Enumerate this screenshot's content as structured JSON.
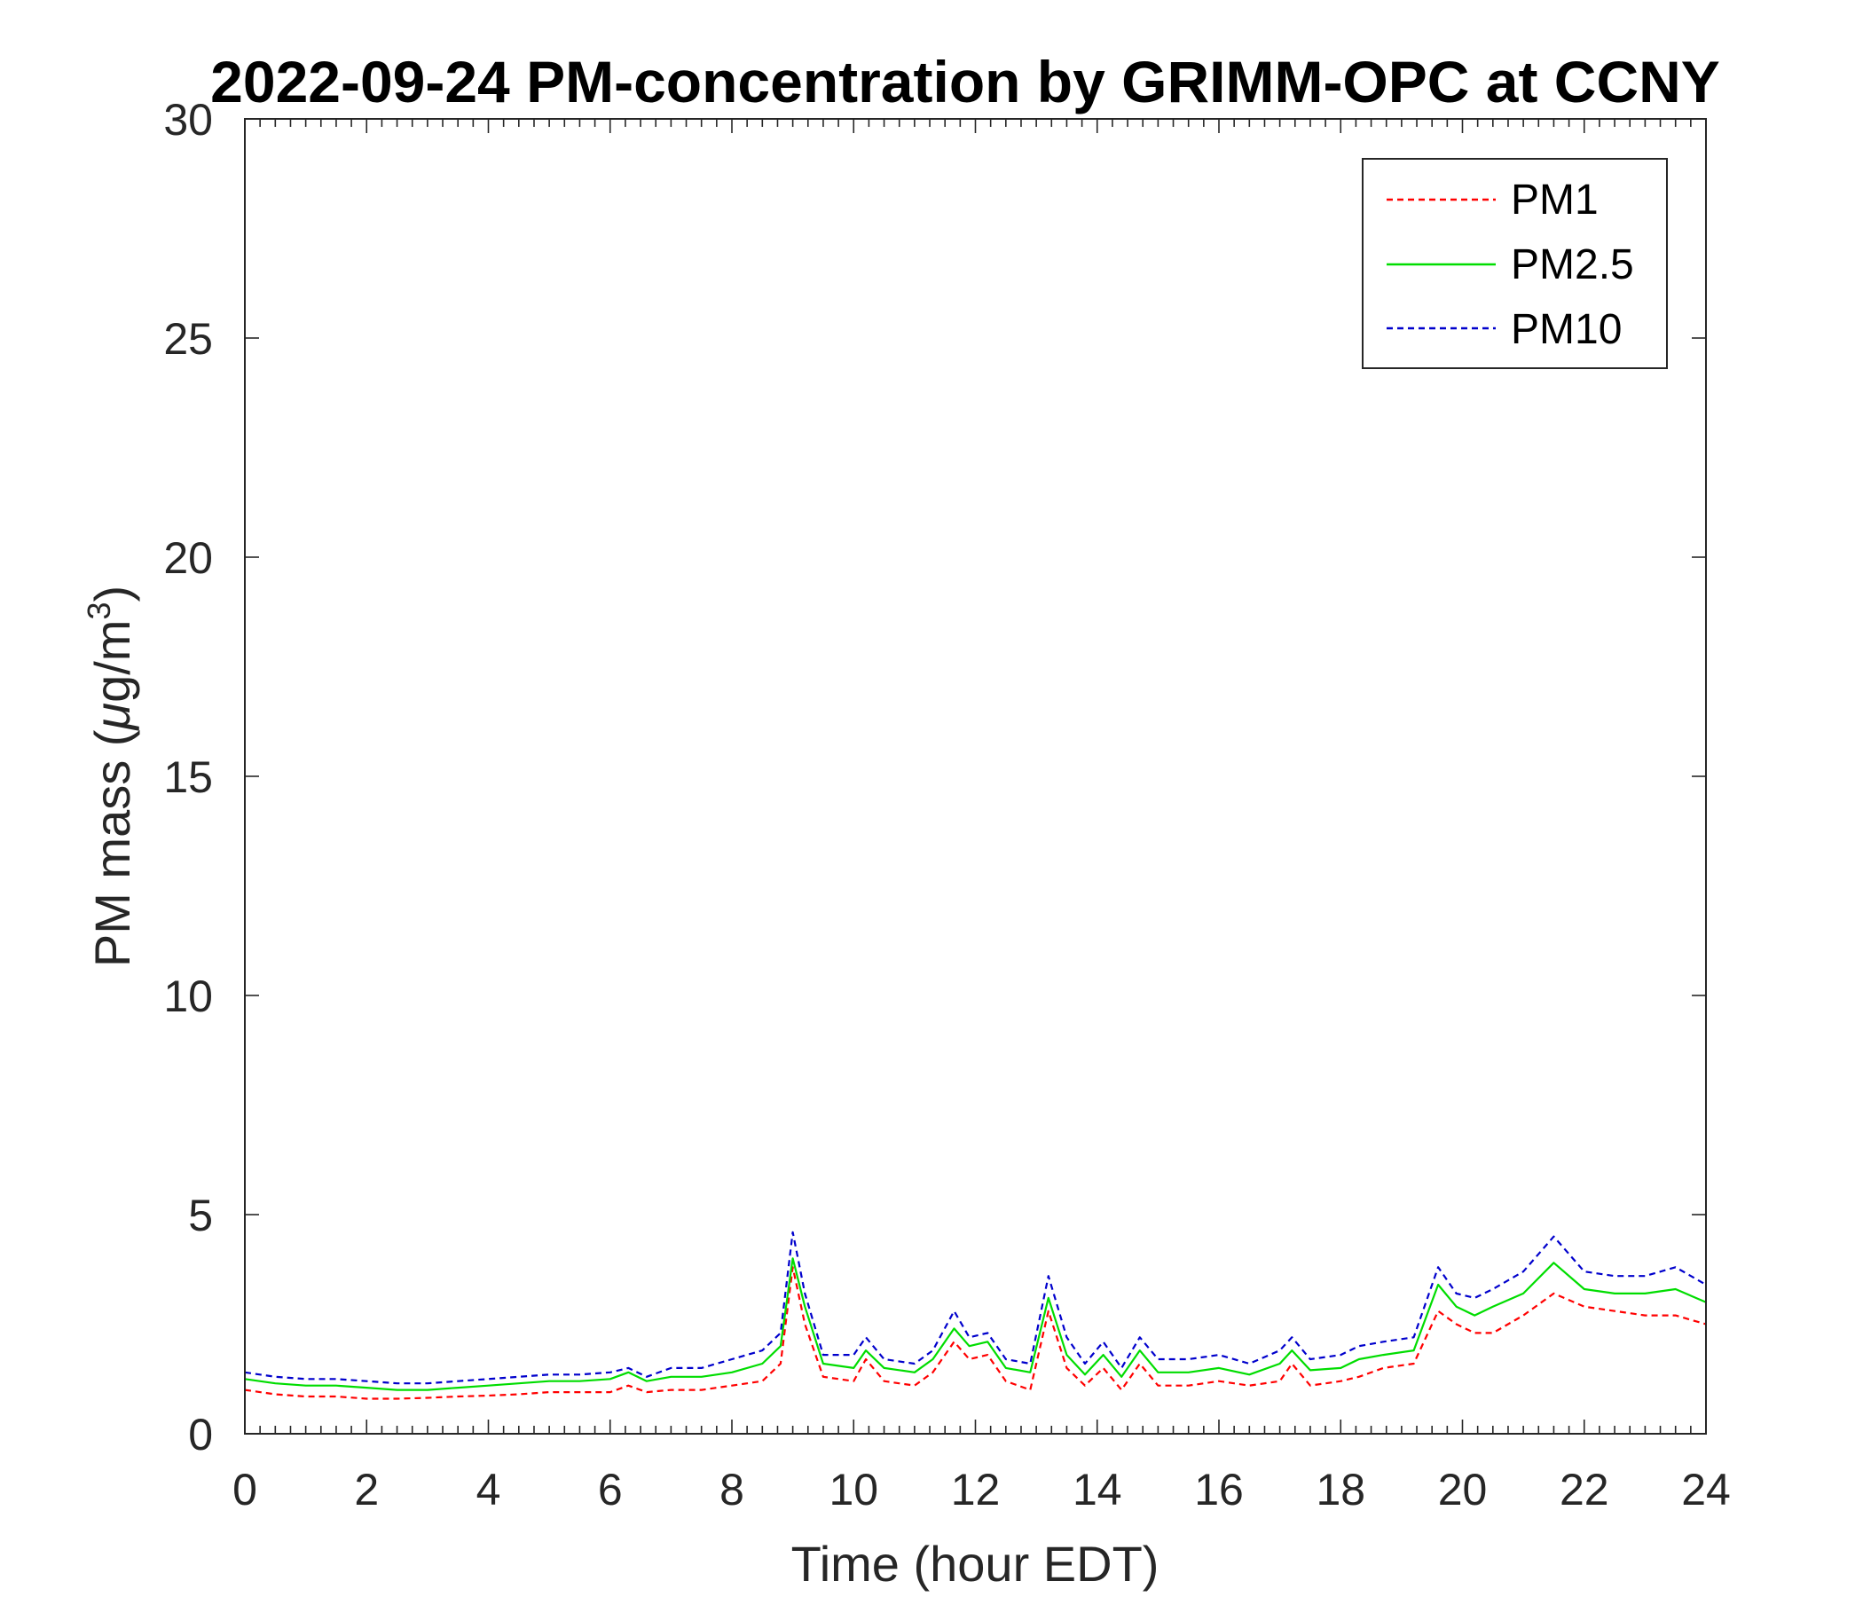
{
  "chart_data": {
    "type": "line",
    "title": "2022-09-24 PM-concentration by GRIMM-OPC at CCNY",
    "xlabel": "Time (hour EDT)",
    "ylabel_prefix": "PM mass (",
    "ylabel_mu": "μ",
    "ylabel_unit": "g/m",
    "ylabel_exp": "3",
    "ylabel_suffix": ")",
    "xlim": [
      0,
      24
    ],
    "ylim": [
      0,
      30
    ],
    "x_ticks": [
      "0",
      "2",
      "4",
      "6",
      "8",
      "10",
      "12",
      "14",
      "16",
      "18",
      "20",
      "22",
      "24"
    ],
    "y_ticks": [
      "0",
      "5",
      "10",
      "15",
      "20",
      "25",
      "30"
    ],
    "grid": false,
    "legend_position": "top-right",
    "x": [
      0,
      0.5,
      1,
      1.5,
      2,
      2.5,
      3,
      3.5,
      4,
      4.5,
      5,
      5.5,
      6,
      6.3,
      6.6,
      7,
      7.5,
      8,
      8.5,
      8.8,
      9,
      9.2,
      9.5,
      10,
      10.2,
      10.5,
      11,
      11.3,
      11.65,
      11.9,
      12.2,
      12.5,
      12.9,
      13.2,
      13.5,
      13.8,
      14.1,
      14.4,
      14.7,
      15,
      15.5,
      16,
      16.5,
      17,
      17.2,
      17.5,
      18,
      18.3,
      18.7,
      19.2,
      19.6,
      19.9,
      20.2,
      20.5,
      21,
      21.5,
      22,
      22.5,
      23,
      23.5,
      24
    ],
    "series": [
      {
        "name": "PM1",
        "color": "#ff0000",
        "dash": "dashed",
        "values": [
          1.0,
          0.9,
          0.85,
          0.85,
          0.8,
          0.8,
          0.82,
          0.85,
          0.87,
          0.9,
          0.95,
          0.95,
          0.95,
          1.1,
          0.95,
          1.0,
          1.0,
          1.1,
          1.2,
          1.6,
          3.8,
          2.5,
          1.3,
          1.2,
          1.7,
          1.2,
          1.1,
          1.4,
          2.1,
          1.7,
          1.8,
          1.2,
          1.0,
          2.8,
          1.5,
          1.1,
          1.5,
          1.0,
          1.6,
          1.1,
          1.1,
          1.2,
          1.1,
          1.2,
          1.6,
          1.1,
          1.2,
          1.3,
          1.5,
          1.6,
          2.8,
          2.5,
          2.3,
          2.3,
          2.7,
          3.2,
          2.9,
          2.8,
          2.7,
          2.7,
          2.5
        ]
      },
      {
        "name": "PM2.5",
        "color": "#00dd00",
        "dash": "solid",
        "values": [
          1.25,
          1.15,
          1.1,
          1.1,
          1.05,
          1.0,
          1.0,
          1.05,
          1.1,
          1.15,
          1.2,
          1.2,
          1.25,
          1.4,
          1.2,
          1.3,
          1.3,
          1.4,
          1.6,
          2.0,
          4.0,
          2.9,
          1.6,
          1.5,
          1.9,
          1.5,
          1.4,
          1.7,
          2.4,
          2.0,
          2.1,
          1.5,
          1.4,
          3.1,
          1.8,
          1.35,
          1.8,
          1.3,
          1.9,
          1.4,
          1.4,
          1.5,
          1.35,
          1.6,
          1.9,
          1.45,
          1.5,
          1.7,
          1.8,
          1.9,
          3.4,
          2.9,
          2.7,
          2.9,
          3.2,
          3.9,
          3.3,
          3.2,
          3.2,
          3.3,
          3.0
        ]
      },
      {
        "name": "PM10",
        "color": "#0000cc",
        "dash": "dashed",
        "values": [
          1.4,
          1.3,
          1.25,
          1.25,
          1.2,
          1.15,
          1.15,
          1.2,
          1.25,
          1.3,
          1.35,
          1.35,
          1.4,
          1.5,
          1.3,
          1.5,
          1.5,
          1.7,
          1.9,
          2.3,
          4.6,
          3.2,
          1.8,
          1.8,
          2.2,
          1.7,
          1.6,
          1.9,
          2.8,
          2.2,
          2.3,
          1.7,
          1.6,
          3.6,
          2.2,
          1.6,
          2.1,
          1.5,
          2.2,
          1.7,
          1.7,
          1.8,
          1.6,
          1.9,
          2.2,
          1.7,
          1.8,
          2.0,
          2.1,
          2.2,
          3.8,
          3.2,
          3.1,
          3.3,
          3.7,
          4.5,
          3.7,
          3.6,
          3.6,
          3.8,
          3.4
        ]
      }
    ]
  }
}
